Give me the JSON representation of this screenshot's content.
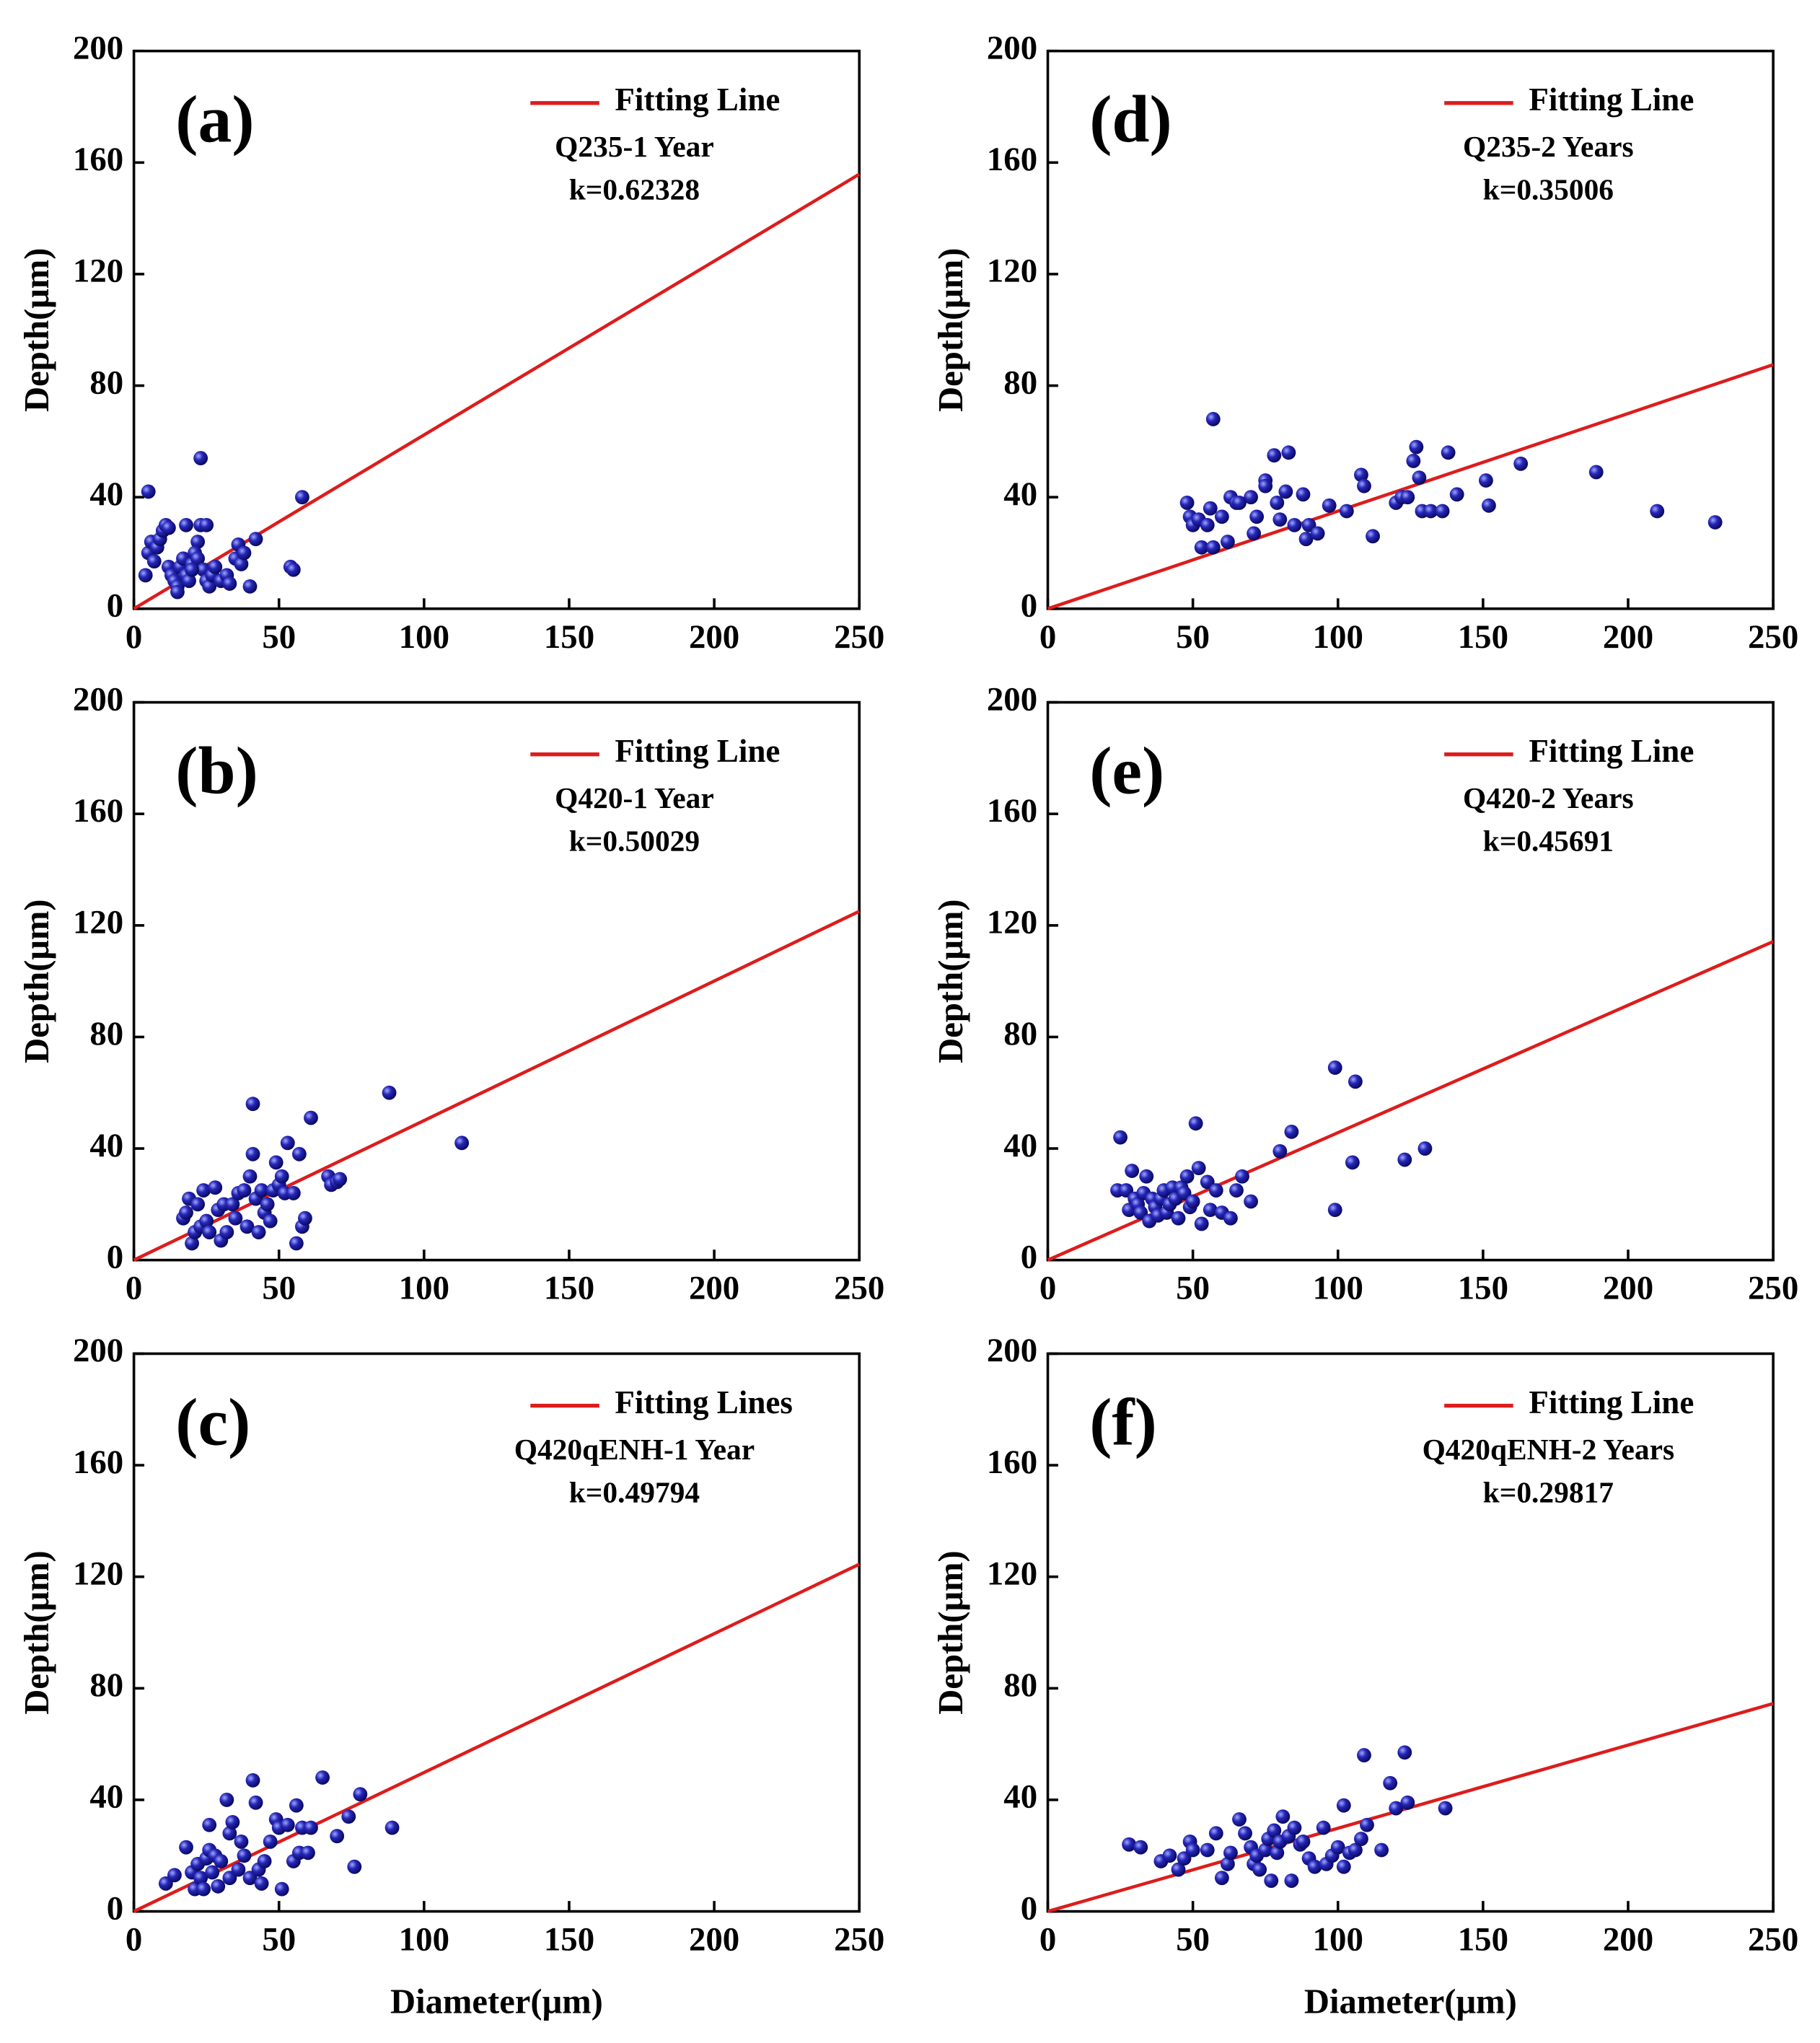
{
  "chart_data": [
    {
      "type": "scatter",
      "panel": "(a)",
      "ylabel": "Depth(μm)",
      "annotations": [
        "Q235-1 Year",
        "k=0.62328"
      ],
      "xlim": [
        0,
        250
      ],
      "ylim": [
        0,
        200
      ],
      "xticks": [
        0,
        50,
        100,
        150,
        200,
        250
      ],
      "yticks": [
        0,
        40,
        80,
        120,
        160,
        200
      ],
      "series": [
        {
          "name": "Fitting Line",
          "type": "line",
          "color": "#dd1c1c",
          "x": [
            0,
            250
          ],
          "values": [
            0,
            155.82
          ]
        },
        {
          "type": "scatter",
          "color": "#1c1ca0",
          "x": [
            5,
            23,
            58,
            4,
            5,
            6,
            7,
            8,
            9,
            10,
            11,
            12,
            18,
            23,
            25,
            22,
            12,
            13,
            14,
            15,
            16,
            17,
            18,
            19,
            20,
            21,
            22,
            24,
            25,
            26,
            27,
            28,
            30,
            32,
            33,
            35,
            36,
            37,
            38,
            40,
            42,
            54,
            55,
            15,
            20
          ],
          "values": [
            42,
            54,
            40,
            12,
            20,
            24,
            17,
            22,
            25,
            28,
            30,
            29,
            30,
            30,
            30,
            24,
            15,
            12,
            10,
            8,
            15,
            18,
            12,
            10,
            16,
            20,
            18,
            14,
            10,
            8,
            12,
            15,
            10,
            12,
            9,
            18,
            23,
            16,
            20,
            8,
            25,
            15,
            14,
            6,
            14
          ]
        }
      ]
    },
    {
      "type": "scatter",
      "panel": "(d)",
      "ylabel": "Depth(μm)",
      "annotations": [
        "Q235-2 Years",
        "k=0.35006"
      ],
      "xlim": [
        0,
        250
      ],
      "ylim": [
        0,
        200
      ],
      "xticks": [
        0,
        50,
        100,
        150,
        200,
        250
      ],
      "yticks": [
        0,
        40,
        80,
        120,
        160,
        200
      ],
      "series": [
        {
          "name": "Fitting Line",
          "type": "line",
          "color": "#dd1c1c",
          "x": [
            0,
            250
          ],
          "values": [
            0,
            87.52
          ]
        },
        {
          "type": "scatter",
          "color": "#1c1ca0",
          "x": [
            57,
            48,
            49,
            50,
            52,
            53,
            55,
            56,
            57,
            60,
            62,
            63,
            65,
            70,
            71,
            72,
            75,
            78,
            79,
            80,
            82,
            83,
            85,
            88,
            89,
            90,
            93,
            97,
            103,
            108,
            109,
            112,
            120,
            122,
            124,
            126,
            127,
            128,
            129,
            132,
            136,
            138,
            141,
            151,
            152,
            163,
            189,
            210,
            230,
            66,
            75
          ],
          "values": [
            68,
            38,
            33,
            30,
            32,
            22,
            30,
            36,
            22,
            33,
            24,
            40,
            38,
            40,
            27,
            33,
            46,
            55,
            38,
            32,
            42,
            56,
            30,
            41,
            25,
            30,
            27,
            37,
            35,
            48,
            44,
            26,
            38,
            40,
            40,
            53,
            58,
            47,
            35,
            35,
            35,
            56,
            41,
            46,
            37,
            52,
            49,
            35,
            31,
            38,
            44
          ]
        }
      ]
    },
    {
      "type": "scatter",
      "panel": "(b)",
      "ylabel": "Depth(μm)",
      "annotations": [
        "Q420-1 Year",
        "k=0.50029"
      ],
      "xlim": [
        0,
        250
      ],
      "ylim": [
        0,
        200
      ],
      "xticks": [
        0,
        50,
        100,
        150,
        200,
        250
      ],
      "yticks": [
        0,
        40,
        80,
        120,
        160,
        200
      ],
      "series": [
        {
          "name": "Fitting Line",
          "type": "line",
          "color": "#dd1c1c",
          "x": [
            0,
            250
          ],
          "values": [
            0,
            125.07
          ]
        },
        {
          "type": "scatter",
          "color": "#1c1ca0",
          "x": [
            113,
            88,
            41,
            61,
            17,
            18,
            19,
            20,
            21,
            22,
            23,
            24,
            25,
            26,
            28,
            29,
            30,
            31,
            32,
            34,
            35,
            36,
            38,
            39,
            40,
            41,
            42,
            43,
            44,
            45,
            46,
            47,
            48,
            49,
            50,
            51,
            52,
            53,
            55,
            56,
            57,
            58,
            59,
            67,
            68,
            70,
            71
          ],
          "values": [
            42,
            60,
            56,
            51,
            15,
            17,
            22,
            6,
            10,
            20,
            12,
            25,
            14,
            10,
            26,
            18,
            7,
            20,
            10,
            20,
            15,
            24,
            25,
            12,
            30,
            38,
            22,
            10,
            25,
            17,
            20,
            14,
            25,
            35,
            27,
            30,
            24,
            42,
            24,
            6,
            38,
            12,
            15,
            30,
            27,
            28,
            29
          ]
        }
      ]
    },
    {
      "type": "scatter",
      "panel": "(e)",
      "ylabel": "Depth(μm)",
      "annotations": [
        "Q420-2 Years",
        "k=0.45691"
      ],
      "xlim": [
        0,
        250
      ],
      "ylim": [
        0,
        200
      ],
      "xticks": [
        0,
        50,
        100,
        150,
        200,
        250
      ],
      "yticks": [
        0,
        40,
        80,
        120,
        160,
        200
      ],
      "series": [
        {
          "name": "Fitting Line",
          "type": "line",
          "color": "#dd1c1c",
          "x": [
            0,
            250
          ],
          "values": [
            0,
            114.23
          ]
        },
        {
          "type": "scatter",
          "color": "#1c1ca0",
          "x": [
            24,
            25,
            27,
            28,
            29,
            30,
            31,
            32,
            33,
            34,
            35,
            36,
            37,
            38,
            39,
            40,
            41,
            42,
            43,
            44,
            45,
            46,
            47,
            48,
            49,
            50,
            51,
            52,
            53,
            55,
            56,
            58,
            60,
            63,
            65,
            67,
            70,
            80,
            84,
            99,
            99,
            105,
            106,
            123,
            130
          ],
          "values": [
            25,
            44,
            25,
            18,
            32,
            22,
            20,
            17,
            24,
            30,
            14,
            22,
            19,
            16,
            22,
            25,
            17,
            20,
            26,
            22,
            15,
            26,
            24,
            30,
            19,
            21,
            49,
            33,
            13,
            28,
            18,
            25,
            17,
            15,
            25,
            30,
            21,
            39,
            46,
            69,
            18,
            35,
            64,
            36,
            40
          ]
        }
      ]
    },
    {
      "type": "scatter",
      "panel": "(c)",
      "xlabel": "Diameter(μm)",
      "ylabel": "Depth(μm)",
      "annotations": [
        "Q420qENH-1 Year",
        "k=0.49794"
      ],
      "xlim": [
        0,
        250
      ],
      "ylim": [
        0,
        200
      ],
      "xticks": [
        0,
        50,
        100,
        150,
        200,
        250
      ],
      "yticks": [
        0,
        40,
        80,
        120,
        160,
        200
      ],
      "series": [
        {
          "name": "Fitting Lines",
          "type": "line",
          "color": "#dd1c1c",
          "x": [
            0,
            250
          ],
          "values": [
            0,
            124.49
          ]
        },
        {
          "type": "scatter",
          "color": "#1c1ca0",
          "x": [
            11,
            14,
            18,
            20,
            21,
            22,
            23,
            24,
            25,
            26,
            26,
            27,
            28,
            29,
            30,
            32,
            33,
            33,
            34,
            36,
            37,
            38,
            40,
            41,
            42,
            43,
            44,
            45,
            47,
            49,
            50,
            51,
            53,
            55,
            56,
            57,
            58,
            60,
            61,
            65,
            70,
            74,
            76,
            78,
            89
          ],
          "values": [
            10,
            13,
            23,
            14,
            8,
            17,
            12,
            8,
            19,
            31,
            22,
            14,
            20,
            9,
            18,
            40,
            28,
            12,
            32,
            15,
            25,
            20,
            12,
            47,
            39,
            15,
            10,
            18,
            25,
            33,
            30,
            8,
            31,
            18,
            38,
            21,
            30,
            21,
            30,
            48,
            27,
            34,
            16,
            42,
            30
          ]
        }
      ]
    },
    {
      "type": "scatter",
      "panel": "(f)",
      "xlabel": "Diameter(μm)",
      "ylabel": "Depth(μm)",
      "annotations": [
        "Q420qENH-2 Years",
        "k=0.29817"
      ],
      "xlim": [
        0,
        250
      ],
      "ylim": [
        0,
        200
      ],
      "xticks": [
        0,
        50,
        100,
        150,
        200,
        250
      ],
      "yticks": [
        0,
        40,
        80,
        120,
        160,
        200
      ],
      "series": [
        {
          "name": "Fitting Line",
          "type": "line",
          "color": "#dd1c1c",
          "x": [
            0,
            250
          ],
          "values": [
            0,
            74.54
          ]
        },
        {
          "type": "scatter",
          "color": "#1c1ca0",
          "x": [
            28,
            32,
            39,
            42,
            45,
            47,
            49,
            50,
            55,
            58,
            60,
            62,
            63,
            66,
            68,
            70,
            71,
            72,
            73,
            75,
            76,
            77,
            78,
            79,
            80,
            81,
            83,
            84,
            85,
            87,
            88,
            90,
            92,
            95,
            96,
            98,
            100,
            102,
            102,
            104,
            106,
            108,
            109,
            110,
            115,
            118,
            120,
            123,
            124,
            137
          ],
          "values": [
            24,
            23,
            18,
            20,
            15,
            19,
            25,
            22,
            22,
            28,
            12,
            17,
            21,
            33,
            28,
            23,
            17,
            20,
            15,
            22,
            26,
            11,
            29,
            21,
            25,
            34,
            27,
            11,
            30,
            24,
            25,
            19,
            16,
            30,
            17,
            20,
            23,
            38,
            16,
            21,
            22,
            26,
            56,
            31,
            22,
            46,
            37,
            57,
            39,
            37
          ]
        }
      ]
    }
  ]
}
